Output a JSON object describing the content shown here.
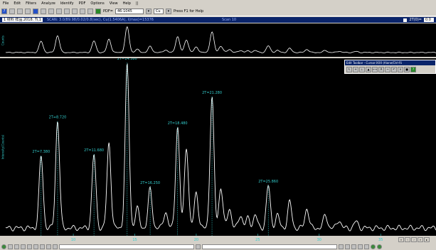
{
  "menu": [
    "File",
    "Edit",
    "Filters",
    "Analyze",
    "Identify",
    "PDF",
    "Options",
    "View",
    "Help",
    "||"
  ],
  "toolbar": {
    "pdf_label": "PDF=",
    "pdf_value": "46-1045",
    "cu_value": "Cu",
    "help_hint": "Press F1 for Help"
  },
  "scan": {
    "file_select": "1 材料 样品.2018. Ti,1",
    "info": "SCAN: 3.0/89.98/0.02/0.8(sec), Cu(1.5406A), I(max)=15376",
    "mode": "Scan 10",
    "theta_label": "2T(0)=",
    "theta_value": "0.0"
  },
  "overview_label": "Counts",
  "main_label": "Intensity(Counts)",
  "edit_toolbar": {
    "title": "Edit Toolbar - Cursor:XXX (Alone/Ctrl-Ri"
  },
  "axis_ticks": [
    "10",
    "15",
    "20",
    "25",
    "30",
    "35"
  ],
  "peak_labels": [
    "2T=7.380",
    "2T=8.720",
    "2T=11.680",
    "2T=14.380",
    "2T=16.250",
    "2T=18.480",
    "2T=21.280",
    "2T=25.860"
  ],
  "colors": {
    "trace": "#ffffff",
    "peak_label": "#33cccc",
    "marker": "#33cccc",
    "background": "#000000"
  }
}
